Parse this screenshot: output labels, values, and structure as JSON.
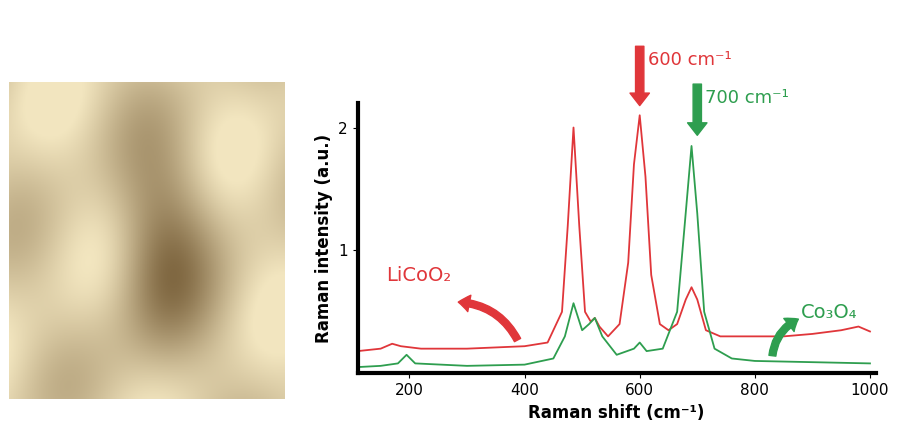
{
  "chart_data": {
    "type": "line",
    "x_label": "Raman shift (cm⁻¹)",
    "y_label": "Raman intensity (a.u.)",
    "xlim": [
      110,
      1010
    ],
    "xticks": [
      200,
      400,
      600,
      800,
      1000
    ],
    "ylim": [
      0,
      2.2
    ],
    "yticks": [
      1,
      2
    ],
    "grid": false,
    "series": [
      {
        "name": "LiCoO₂",
        "color": "#e0363a",
        "x": [
          110,
          150,
          170,
          185,
          220,
          300,
          400,
          440,
          465,
          475,
          485,
          495,
          505,
          515,
          522,
          530,
          545,
          565,
          580,
          590,
          600,
          610,
          620,
          635,
          650,
          665,
          680,
          690,
          700,
          715,
          740,
          800,
          850,
          900,
          950,
          980,
          1000
        ],
        "values": [
          0.18,
          0.2,
          0.24,
          0.22,
          0.2,
          0.2,
          0.22,
          0.25,
          0.5,
          1.2,
          2.0,
          1.2,
          0.5,
          0.42,
          0.45,
          0.38,
          0.3,
          0.4,
          0.9,
          1.7,
          2.1,
          1.6,
          0.8,
          0.4,
          0.35,
          0.4,
          0.6,
          0.7,
          0.6,
          0.35,
          0.3,
          0.3,
          0.3,
          0.32,
          0.35,
          0.38,
          0.34
        ]
      },
      {
        "name": "Co₃O₄",
        "color": "#2e9e4f",
        "x": [
          110,
          150,
          180,
          195,
          210,
          300,
          400,
          450,
          470,
          485,
          500,
          512,
          522,
          535,
          560,
          590,
          600,
          612,
          640,
          665,
          678,
          690,
          700,
          712,
          730,
          760,
          800,
          900,
          1000
        ],
        "values": [
          0.05,
          0.06,
          0.08,
          0.15,
          0.08,
          0.06,
          0.07,
          0.12,
          0.3,
          0.57,
          0.35,
          0.4,
          0.45,
          0.3,
          0.15,
          0.2,
          0.25,
          0.18,
          0.2,
          0.5,
          1.2,
          1.85,
          1.3,
          0.5,
          0.2,
          0.12,
          0.1,
          0.09,
          0.08
        ]
      }
    ],
    "annotations": [
      {
        "text": "600 cm⁻¹",
        "x": 600,
        "color": "#e0363a"
      },
      {
        "text": "700 cm⁻¹",
        "x": 700,
        "color": "#2e9e4f"
      }
    ]
  }
}
